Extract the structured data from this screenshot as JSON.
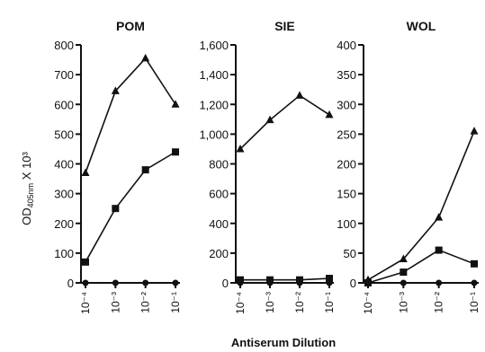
{
  "figure": {
    "ylabel": "OD405nm X 10³",
    "ylabel_main": "OD",
    "ylabel_sub": "405nm",
    "ylabel_rest": " X 10³",
    "xlabel": "Antiserum Dilution"
  },
  "chart_data": [
    {
      "type": "line",
      "title": "POM",
      "categories": [
        "10⁻⁴",
        "10⁻³",
        "10⁻²",
        "10⁻¹"
      ],
      "ylim": [
        0,
        800
      ],
      "yticks": [
        0,
        100,
        200,
        300,
        400,
        500,
        600,
        700,
        800
      ],
      "ytick_labels": [
        "0",
        "100",
        "200",
        "300",
        "400",
        "500",
        "600",
        "700",
        "800"
      ],
      "series": [
        {
          "marker": "triangle",
          "values": [
            370,
            645,
            755,
            600
          ]
        },
        {
          "marker": "square",
          "values": [
            70,
            250,
            380,
            440
          ]
        },
        {
          "marker": "circle",
          "values": [
            0,
            0,
            0,
            0
          ]
        }
      ]
    },
    {
      "type": "line",
      "title": "SIE",
      "categories": [
        "10⁻⁴",
        "10⁻³",
        "10⁻²",
        "10⁻¹"
      ],
      "ylim": [
        0,
        1600
      ],
      "yticks": [
        0,
        200,
        400,
        600,
        800,
        1000,
        1200,
        1400,
        1600
      ],
      "ytick_labels": [
        "0",
        "200",
        "400",
        "600",
        "800",
        "1,000",
        "1,200",
        "1,400",
        "1,600"
      ],
      "series": [
        {
          "marker": "triangle",
          "values": [
            900,
            1095,
            1260,
            1130
          ]
        },
        {
          "marker": "square",
          "values": [
            20,
            20,
            20,
            30
          ]
        },
        {
          "marker": "circle",
          "values": [
            0,
            0,
            0,
            0
          ]
        }
      ]
    },
    {
      "type": "line",
      "title": "WOL",
      "categories": [
        "10⁻⁴",
        "10⁻³",
        "10⁻²",
        "10⁻¹"
      ],
      "ylim": [
        0,
        400
      ],
      "yticks": [
        0,
        50,
        100,
        150,
        200,
        250,
        300,
        350,
        400
      ],
      "ytick_labels": [
        "0",
        "50",
        "100",
        "150",
        "200",
        "250",
        "300",
        "350",
        "400"
      ],
      "series": [
        {
          "marker": "triangle",
          "values": [
            5,
            40,
            110,
            255
          ]
        },
        {
          "marker": "square",
          "values": [
            0,
            18,
            55,
            32
          ]
        },
        {
          "marker": "circle",
          "values": [
            0,
            0,
            0,
            0
          ]
        }
      ]
    }
  ]
}
